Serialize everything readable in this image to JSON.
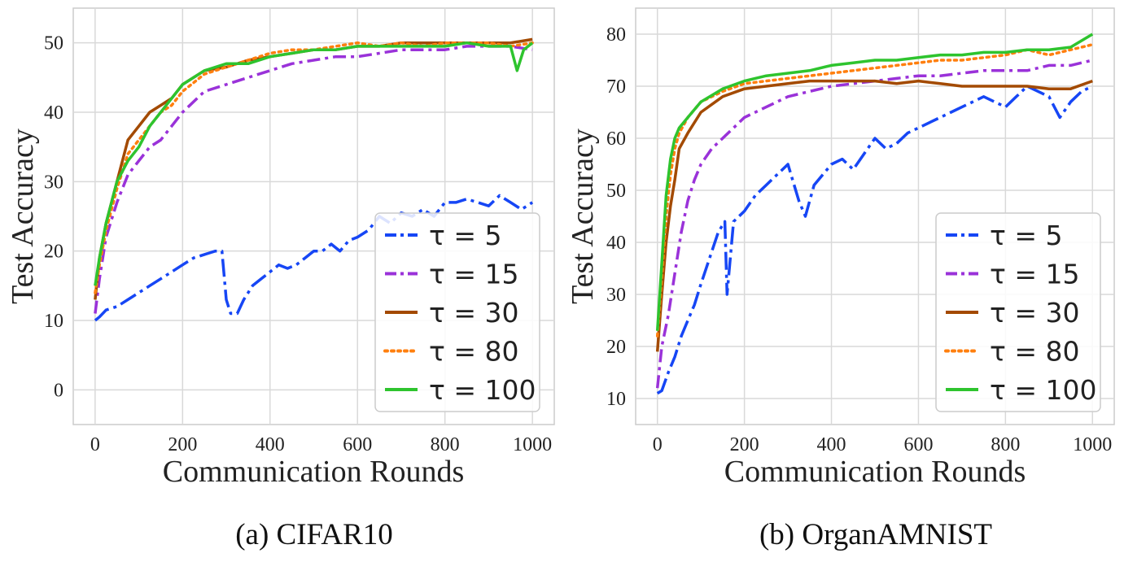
{
  "chart_data": [
    {
      "type": "line",
      "caption": "(a) CIFAR10",
      "xlabel": "Communication Rounds",
      "ylabel": "Test Accuracy",
      "xlim": [
        -50,
        1050
      ],
      "ylim": [
        -5,
        55
      ],
      "xticks": [
        0,
        200,
        400,
        600,
        800,
        1000
      ],
      "yticks": [
        0,
        10,
        20,
        30,
        40,
        50
      ],
      "grid": true,
      "legend_position": "lower-right",
      "series": [
        {
          "name": "τ = 5",
          "color": "#1646f5",
          "dash": "long-dash-dot",
          "x": [
            0,
            10,
            25,
            50,
            75,
            100,
            125,
            150,
            175,
            200,
            225,
            250,
            275,
            290,
            300,
            310,
            325,
            340,
            360,
            380,
            400,
            420,
            440,
            460,
            480,
            500,
            520,
            540,
            560,
            580,
            600,
            625,
            650,
            675,
            700,
            725,
            750,
            775,
            800,
            825,
            850,
            875,
            900,
            925,
            950,
            975,
            1000
          ],
          "y": [
            10,
            10.5,
            11.5,
            12,
            13,
            14,
            15,
            16,
            17,
            18,
            19,
            19.5,
            20,
            20,
            13,
            11,
            11,
            13,
            15,
            16,
            17,
            18,
            17.5,
            18,
            19,
            20,
            20,
            21,
            20,
            21.5,
            22,
            23,
            25,
            24,
            25.5,
            25,
            26,
            25,
            27,
            27,
            27.5,
            27,
            26.5,
            28,
            27,
            26,
            27
          ]
        },
        {
          "name": "τ = 15",
          "color": "#9a32d9",
          "dash": "dash-dot",
          "x": [
            0,
            10,
            25,
            50,
            75,
            100,
            125,
            150,
            175,
            200,
            250,
            300,
            350,
            400,
            450,
            500,
            550,
            600,
            650,
            700,
            750,
            800,
            850,
            900,
            950,
            1000
          ],
          "y": [
            11,
            16,
            22,
            27,
            31,
            33,
            35,
            36,
            38,
            40,
            43,
            44,
            45,
            46,
            47,
            47.5,
            48,
            48,
            48.5,
            49,
            49,
            49,
            49.5,
            49.5,
            49.5,
            49
          ]
        },
        {
          "name": "τ = 30",
          "color": "#a34a00",
          "dash": "solid",
          "x": [
            0,
            10,
            25,
            50,
            75,
            100,
            125,
            150,
            175,
            200,
            250,
            300,
            350,
            400,
            450,
            500,
            550,
            600,
            650,
            700,
            750,
            800,
            850,
            900,
            950,
            1000
          ],
          "y": [
            13,
            19,
            24,
            30,
            36,
            38,
            40,
            41,
            42,
            44,
            46,
            46.5,
            47.5,
            48,
            48.5,
            49,
            49,
            49.5,
            49.5,
            50,
            50,
            50,
            50,
            50,
            50,
            50.5
          ]
        },
        {
          "name": "τ = 80",
          "color": "#ff7f0e",
          "dash": "dotted",
          "x": [
            0,
            10,
            25,
            50,
            75,
            100,
            125,
            150,
            175,
            200,
            250,
            300,
            350,
            400,
            450,
            500,
            550,
            600,
            650,
            700,
            750,
            800,
            850,
            900,
            950,
            1000
          ],
          "y": [
            14,
            18,
            23,
            29,
            34,
            36,
            38,
            40,
            41,
            43,
            45.5,
            46.5,
            47.5,
            48.5,
            49,
            49,
            49.5,
            50,
            49.5,
            50,
            49.5,
            50,
            50,
            50,
            49.5,
            50
          ]
        },
        {
          "name": "τ = 100",
          "color": "#2ec42e",
          "dash": "solid",
          "x": [
            0,
            10,
            25,
            50,
            75,
            100,
            125,
            150,
            175,
            200,
            250,
            300,
            350,
            400,
            450,
            500,
            550,
            600,
            650,
            700,
            750,
            800,
            850,
            900,
            950,
            965,
            980,
            1000
          ],
          "y": [
            15,
            19,
            24,
            30,
            33,
            35,
            38,
            40,
            42,
            44,
            46,
            47,
            47,
            48,
            48.5,
            49,
            49,
            49.5,
            49.5,
            49.5,
            49.5,
            49.5,
            50,
            49.5,
            49.5,
            46,
            49,
            50
          ]
        }
      ]
    },
    {
      "type": "line",
      "caption": "(b) OrganAMNIST",
      "xlabel": "Communication Rounds",
      "ylabel": "Test Accuracy",
      "xlim": [
        -50,
        1050
      ],
      "ylim": [
        5,
        85
      ],
      "xticks": [
        0,
        200,
        400,
        600,
        800,
        1000
      ],
      "yticks": [
        10,
        20,
        30,
        40,
        50,
        60,
        70,
        80
      ],
      "grid": true,
      "legend_position": "lower-right",
      "series": [
        {
          "name": "τ = 5",
          "color": "#1646f5",
          "dash": "long-dash-dot",
          "x": [
            0,
            10,
            25,
            40,
            55,
            70,
            85,
            100,
            120,
            140,
            155,
            160,
            175,
            200,
            225,
            250,
            275,
            300,
            325,
            340,
            360,
            380,
            400,
            425,
            450,
            475,
            500,
            525,
            550,
            575,
            600,
            625,
            650,
            675,
            700,
            725,
            750,
            775,
            800,
            825,
            850,
            875,
            900,
            925,
            950,
            975,
            1000
          ],
          "y": [
            11,
            11.5,
            15,
            18,
            22,
            25,
            28,
            32,
            37,
            42,
            44,
            30,
            44,
            46,
            49,
            51,
            53,
            55,
            48,
            45,
            51,
            53,
            55,
            56,
            54,
            57,
            60,
            58,
            59,
            61,
            62,
            63,
            64,
            65,
            66,
            67,
            68,
            67,
            66,
            68,
            70,
            69,
            68,
            64,
            67,
            69,
            70
          ]
        },
        {
          "name": "τ = 15",
          "color": "#9a32d9",
          "dash": "dash-dot",
          "x": [
            0,
            10,
            25,
            40,
            55,
            70,
            85,
            100,
            125,
            150,
            175,
            200,
            250,
            300,
            350,
            400,
            450,
            500,
            550,
            600,
            650,
            700,
            750,
            800,
            850,
            900,
            950,
            1000
          ],
          "y": [
            12,
            20,
            26,
            34,
            42,
            48,
            52,
            55,
            58,
            60,
            62,
            64,
            66,
            68,
            69,
            70,
            70.5,
            71,
            71.5,
            72,
            72,
            72.5,
            73,
            73,
            73,
            74,
            74,
            75
          ]
        },
        {
          "name": "τ = 30",
          "color": "#a34a00",
          "dash": "solid",
          "x": [
            0,
            10,
            20,
            30,
            40,
            50,
            70,
            100,
            150,
            200,
            250,
            300,
            350,
            400,
            450,
            500,
            550,
            600,
            650,
            700,
            750,
            800,
            850,
            900,
            950,
            1000
          ],
          "y": [
            19,
            30,
            40,
            47,
            52,
            58,
            61,
            65,
            68,
            69.5,
            70,
            70.5,
            71,
            71,
            71,
            71,
            70.5,
            71,
            70.5,
            70,
            70,
            70,
            70,
            69.5,
            69.5,
            71
          ]
        },
        {
          "name": "τ = 80",
          "color": "#ff7f0e",
          "dash": "dotted",
          "x": [
            0,
            10,
            20,
            30,
            40,
            50,
            70,
            100,
            150,
            200,
            250,
            300,
            350,
            400,
            450,
            500,
            550,
            600,
            650,
            700,
            750,
            800,
            850,
            900,
            950,
            1000
          ],
          "y": [
            22,
            33,
            45,
            53,
            58,
            61,
            64,
            67,
            69,
            70.5,
            71,
            71.5,
            72,
            72.5,
            73,
            73.5,
            74,
            74.5,
            75,
            75,
            75.5,
            76,
            77,
            76,
            77,
            78
          ]
        },
        {
          "name": "τ = 100",
          "color": "#2ec42e",
          "dash": "solid",
          "x": [
            0,
            10,
            20,
            30,
            40,
            50,
            70,
            100,
            150,
            200,
            250,
            300,
            350,
            400,
            450,
            500,
            550,
            600,
            650,
            700,
            750,
            800,
            850,
            900,
            950,
            1000
          ],
          "y": [
            23,
            36,
            49,
            56,
            60,
            62,
            64,
            67,
            69.5,
            71,
            72,
            72.5,
            73,
            74,
            74.5,
            75,
            75,
            75.5,
            76,
            76,
            76.5,
            76.5,
            77,
            77,
            77.5,
            80
          ]
        }
      ]
    }
  ]
}
